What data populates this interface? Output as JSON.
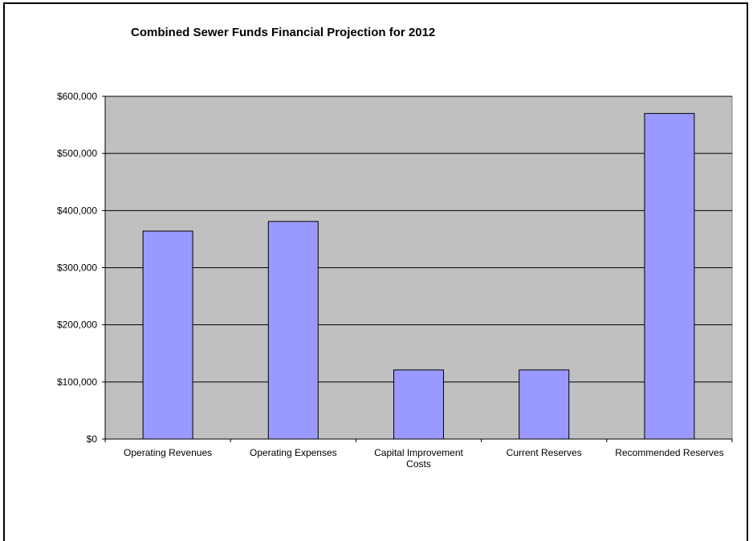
{
  "chart_data": {
    "type": "bar",
    "title": "Combined Sewer Funds Financial Projection for 2012",
    "categories": [
      "Operating Revenues",
      "Operating Expenses",
      "Capital Improvement Costs",
      "Current   Reserves",
      "Recommended Reserves"
    ],
    "category_lines": [
      [
        "Operating Revenues"
      ],
      [
        "Operating Expenses"
      ],
      [
        "Capital Improvement",
        "Costs"
      ],
      [
        "Current   Reserves"
      ],
      [
        "Recommended Reserves"
      ]
    ],
    "values": [
      364000,
      381000,
      121000,
      121000,
      570000
    ],
    "ylim": [
      0,
      600000
    ],
    "yticks": [
      0,
      100000,
      200000,
      300000,
      400000,
      500000,
      600000
    ],
    "ytick_labels": [
      "$0",
      "$100,000",
      "$200,000",
      "$300,000",
      "$400,000",
      "$500,000",
      "$600,000"
    ],
    "xlabel": "",
    "ylabel": "",
    "grid": true,
    "legend": false,
    "colors": {
      "bar_fill": "#9999ff",
      "bar_stroke": "#000000",
      "plot_background": "#c0c0c0",
      "gridline": "#000000"
    }
  }
}
